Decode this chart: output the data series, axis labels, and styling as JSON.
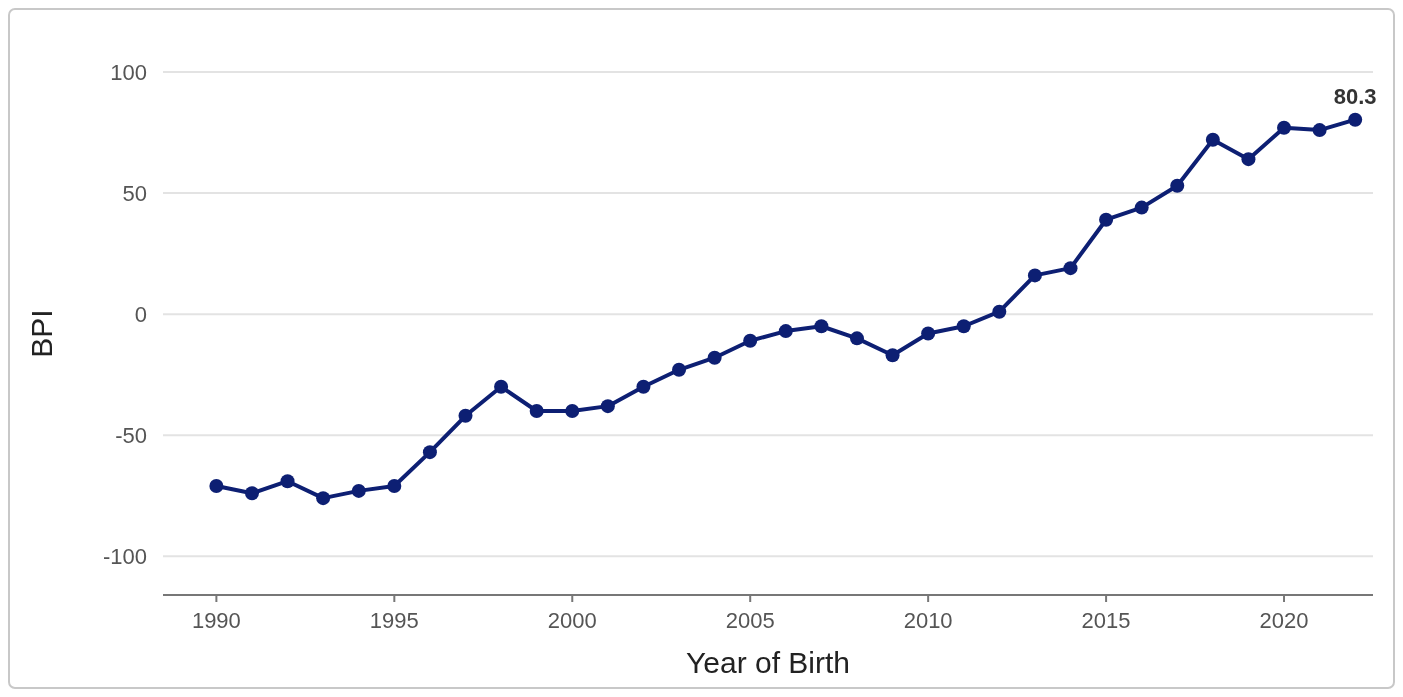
{
  "chart_data": {
    "type": "line",
    "xlabel": "Year of Birth",
    "ylabel": "BPI",
    "x": [
      1990,
      1991,
      1992,
      1993,
      1994,
      1995,
      1996,
      1997,
      1998,
      1999,
      2000,
      2001,
      2002,
      2003,
      2004,
      2005,
      2006,
      2007,
      2008,
      2009,
      2010,
      2011,
      2012,
      2013,
      2014,
      2015,
      2016,
      2017,
      2018,
      2019,
      2020,
      2021,
      2022
    ],
    "series": [
      {
        "color": "#0d1f73",
        "values": [
          -71,
          -74,
          -69,
          -76,
          -73,
          -71,
          -57,
          -42,
          -30,
          -40,
          -40,
          -38,
          -30,
          -23,
          -18,
          -11,
          -7,
          -5,
          -10,
          -17,
          -8,
          -5,
          1,
          16,
          19,
          39,
          44,
          53,
          72,
          64,
          77,
          76,
          80.3
        ]
      }
    ],
    "annotations": [
      {
        "text": "80.3",
        "x": 2022,
        "y": 80.3
      }
    ],
    "xlim": [
      1988.5,
      2022.5
    ],
    "xticks": [
      1990,
      1995,
      2000,
      2005,
      2010,
      2015,
      2020
    ],
    "ylim": [
      -116,
      100
    ],
    "yticks": [
      -100,
      -50,
      0,
      50,
      100
    ],
    "grid": "y",
    "marker": "circle",
    "line_style": "solid"
  }
}
